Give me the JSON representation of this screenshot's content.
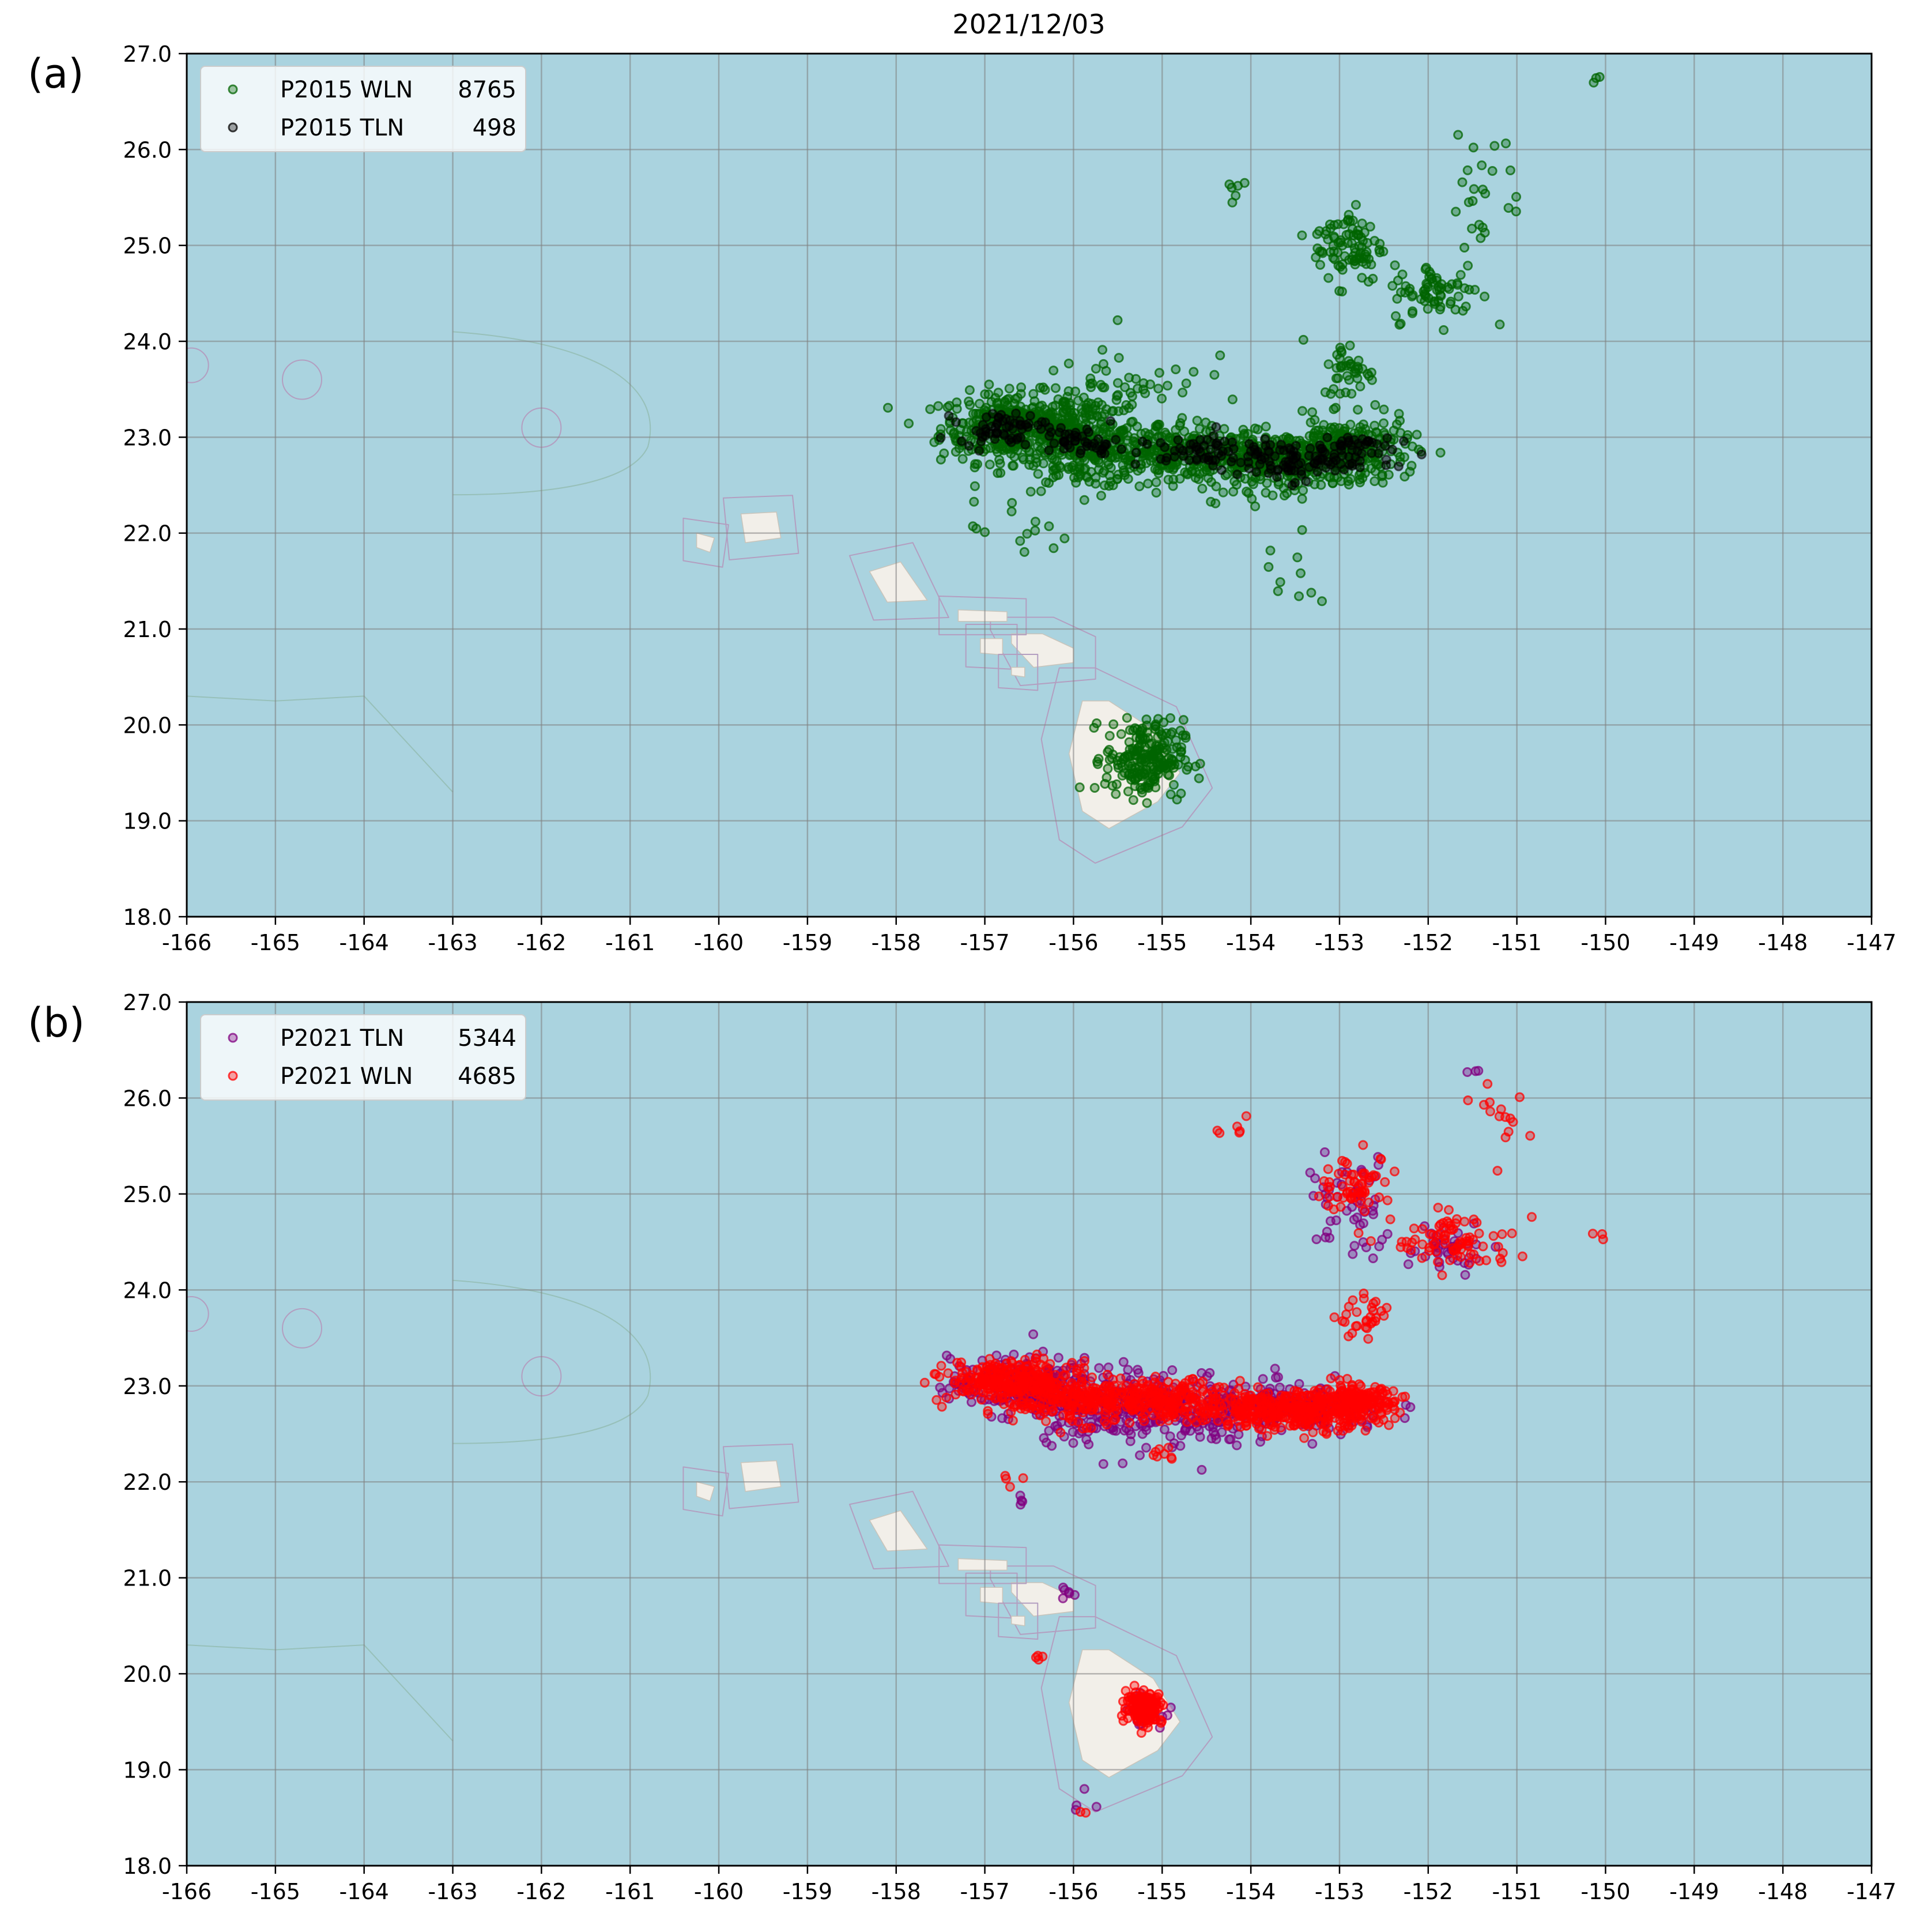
{
  "figure": {
    "title": "2021/12/03",
    "colors": {
      "ocean": "#aad3df",
      "land": "#f2efe9",
      "grid": "#808080",
      "wln_2015": "#006400",
      "tln_2015": "#000000",
      "tln_2021": "#800080",
      "wln_2021": "#ff0000"
    }
  },
  "chart_data": [
    {
      "type": "scatter",
      "panel_label": "(a)",
      "xlabel": "",
      "ylabel": "",
      "xlim": [
        -166,
        -147
      ],
      "ylim": [
        18.0,
        27.0
      ],
      "xticks": [
        "-166",
        "-165",
        "-164",
        "-163",
        "-162",
        "-161",
        "-160",
        "-159",
        "-158",
        "-157",
        "-156",
        "-155",
        "-154",
        "-153",
        "-152",
        "-151",
        "-150",
        "-149",
        "-148",
        "-147"
      ],
      "yticks": [
        "18.0",
        "19.0",
        "20.0",
        "21.0",
        "22.0",
        "23.0",
        "24.0",
        "25.0",
        "26.0",
        "27.0"
      ],
      "grid": true,
      "legend_position": "top-left",
      "series": [
        {
          "name": "P2015 WLN",
          "count": "8765",
          "color": "#006400",
          "clusters": [
            {
              "x": -156.7,
              "y": 23.1,
              "sx": 0.4,
              "sy": 0.18,
              "n": 340
            },
            {
              "x": -155.9,
              "y": 22.95,
              "sx": 0.35,
              "sy": 0.25,
              "n": 300
            },
            {
              "x": -155.0,
              "y": 22.85,
              "sx": 0.35,
              "sy": 0.15,
              "n": 200
            },
            {
              "x": -153.7,
              "y": 22.75,
              "sx": 0.55,
              "sy": 0.15,
              "n": 380
            },
            {
              "x": -152.9,
              "y": 22.9,
              "sx": 0.35,
              "sy": 0.15,
              "n": 200
            },
            {
              "x": -155.2,
              "y": 19.65,
              "sx": 0.22,
              "sy": 0.2,
              "n": 220
            },
            {
              "x": -152.9,
              "y": 25.0,
              "sx": 0.2,
              "sy": 0.2,
              "n": 90
            },
            {
              "x": -151.9,
              "y": 24.5,
              "sx": 0.25,
              "sy": 0.15,
              "n": 70
            },
            {
              "x": -152.9,
              "y": 23.7,
              "sx": 0.15,
              "sy": 0.15,
              "n": 40
            },
            {
              "x": -155.3,
              "y": 23.6,
              "sx": 0.4,
              "sy": 0.25,
              "n": 40
            },
            {
              "x": -151.4,
              "y": 25.6,
              "sx": 0.25,
              "sy": 0.3,
              "n": 25
            },
            {
              "x": -156.7,
              "y": 22.0,
              "sx": 0.3,
              "sy": 0.15,
              "n": 12
            },
            {
              "x": -153.6,
              "y": 21.5,
              "sx": 0.3,
              "sy": 0.35,
              "n": 10
            },
            {
              "x": -154.2,
              "y": 25.6,
              "sx": 0.1,
              "sy": 0.1,
              "n": 6
            },
            {
              "x": -150.1,
              "y": 26.75,
              "sx": 0.04,
              "sy": 0.05,
              "n": 3
            }
          ]
        },
        {
          "name": "P2015 TLN",
          "count": "498",
          "color": "#000000",
          "clusters": [
            {
              "x": -156.8,
              "y": 23.1,
              "sx": 0.25,
              "sy": 0.08,
              "n": 60
            },
            {
              "x": -155.9,
              "y": 22.95,
              "sx": 0.2,
              "sy": 0.08,
              "n": 40
            },
            {
              "x": -154.6,
              "y": 22.85,
              "sx": 0.35,
              "sy": 0.08,
              "n": 50
            },
            {
              "x": -153.6,
              "y": 22.75,
              "sx": 0.4,
              "sy": 0.1,
              "n": 90
            },
            {
              "x": -152.9,
              "y": 22.9,
              "sx": 0.25,
              "sy": 0.08,
              "n": 40
            }
          ]
        }
      ]
    },
    {
      "type": "scatter",
      "panel_label": "(b)",
      "xlabel": "",
      "ylabel": "",
      "xlim": [
        -166,
        -147
      ],
      "ylim": [
        18.0,
        27.0
      ],
      "xticks": [
        "-166",
        "-165",
        "-164",
        "-163",
        "-162",
        "-161",
        "-160",
        "-159",
        "-158",
        "-157",
        "-156",
        "-155",
        "-154",
        "-153",
        "-152",
        "-151",
        "-150",
        "-149",
        "-148",
        "-147"
      ],
      "yticks": [
        "18.0",
        "19.0",
        "20.0",
        "21.0",
        "22.0",
        "23.0",
        "24.0",
        "25.0",
        "26.0",
        "27.0"
      ],
      "grid": true,
      "legend_position": "top-left",
      "series": [
        {
          "name": "P2021 TLN",
          "count": "5344",
          "color": "#800080",
          "clusters": [
            {
              "x": -156.6,
              "y": 23.0,
              "sx": 0.4,
              "sy": 0.15,
              "n": 200
            },
            {
              "x": -155.7,
              "y": 22.8,
              "sx": 0.4,
              "sy": 0.2,
              "n": 160
            },
            {
              "x": -154.8,
              "y": 22.75,
              "sx": 0.4,
              "sy": 0.2,
              "n": 150
            },
            {
              "x": -153.5,
              "y": 22.75,
              "sx": 0.55,
              "sy": 0.13,
              "n": 200
            },
            {
              "x": -152.9,
              "y": 24.9,
              "sx": 0.25,
              "sy": 0.25,
              "n": 50
            },
            {
              "x": -151.8,
              "y": 24.5,
              "sx": 0.3,
              "sy": 0.15,
              "n": 40
            },
            {
              "x": -155.2,
              "y": 19.6,
              "sx": 0.1,
              "sy": 0.08,
              "n": 20
            },
            {
              "x": -156.1,
              "y": 20.85,
              "sx": 0.05,
              "sy": 0.03,
              "n": 6
            },
            {
              "x": -156.6,
              "y": 21.8,
              "sx": 0.05,
              "sy": 0.03,
              "n": 4
            },
            {
              "x": -155.9,
              "y": 18.7,
              "sx": 0.05,
              "sy": 0.05,
              "n": 4
            },
            {
              "x": -151.5,
              "y": 26.2,
              "sx": 0.05,
              "sy": 0.05,
              "n": 3
            }
          ]
        },
        {
          "name": "P2021 WLN",
          "count": "4685",
          "color": "#ff0000",
          "clusters": [
            {
              "x": -156.7,
              "y": 23.05,
              "sx": 0.35,
              "sy": 0.1,
              "n": 280
            },
            {
              "x": -156.0,
              "y": 22.85,
              "sx": 0.35,
              "sy": 0.12,
              "n": 200
            },
            {
              "x": -154.9,
              "y": 22.85,
              "sx": 0.35,
              "sy": 0.1,
              "n": 200
            },
            {
              "x": -153.5,
              "y": 22.75,
              "sx": 0.5,
              "sy": 0.1,
              "n": 380
            },
            {
              "x": -152.8,
              "y": 22.85,
              "sx": 0.2,
              "sy": 0.08,
              "n": 120
            },
            {
              "x": -155.2,
              "y": 19.65,
              "sx": 0.1,
              "sy": 0.08,
              "n": 180
            },
            {
              "x": -152.8,
              "y": 25.1,
              "sx": 0.2,
              "sy": 0.15,
              "n": 60
            },
            {
              "x": -151.7,
              "y": 24.5,
              "sx": 0.35,
              "sy": 0.15,
              "n": 80
            },
            {
              "x": -152.7,
              "y": 23.7,
              "sx": 0.15,
              "sy": 0.1,
              "n": 30
            },
            {
              "x": -151.1,
              "y": 25.8,
              "sx": 0.15,
              "sy": 0.2,
              "n": 15
            },
            {
              "x": -154.2,
              "y": 25.6,
              "sx": 0.08,
              "sy": 0.1,
              "n": 6
            },
            {
              "x": -150.1,
              "y": 24.6,
              "sx": 0.04,
              "sy": 0.03,
              "n": 3
            },
            {
              "x": -155.0,
              "y": 22.3,
              "sx": 0.08,
              "sy": 0.05,
              "n": 8
            },
            {
              "x": -156.7,
              "y": 22.0,
              "sx": 0.08,
              "sy": 0.05,
              "n": 4
            },
            {
              "x": -156.4,
              "y": 20.2,
              "sx": 0.04,
              "sy": 0.03,
              "n": 4
            },
            {
              "x": -155.9,
              "y": 18.6,
              "sx": 0.03,
              "sy": 0.03,
              "n": 2
            }
          ]
        }
      ]
    }
  ]
}
